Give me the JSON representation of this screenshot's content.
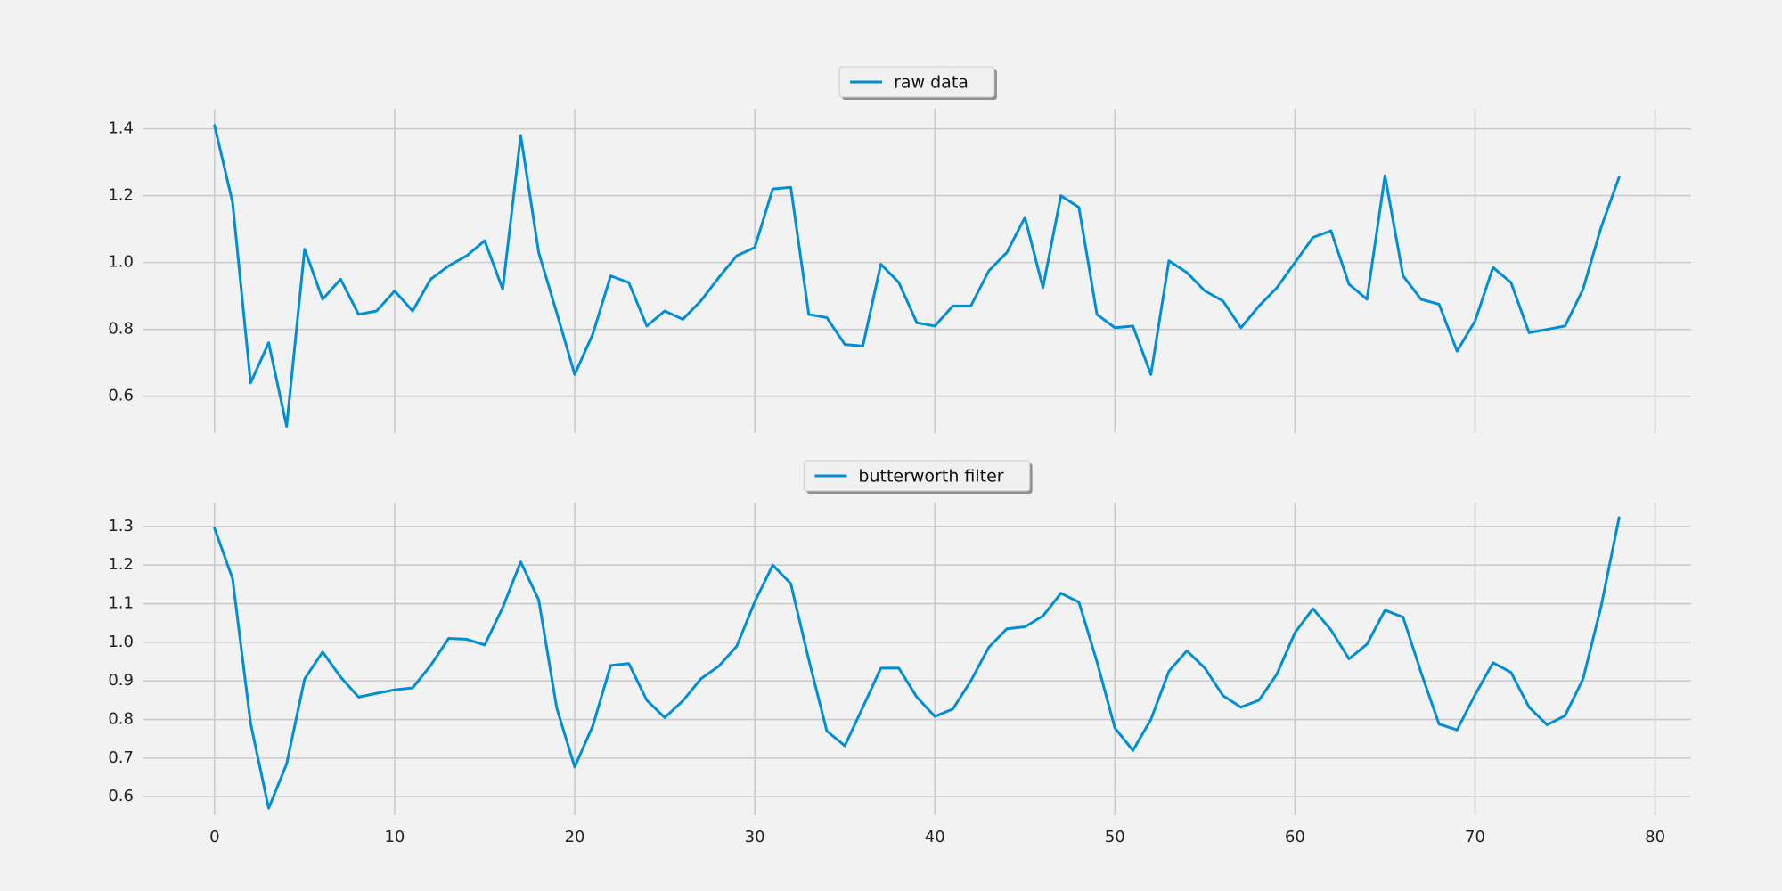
{
  "chart_data": [
    {
      "type": "line",
      "xlim": [
        -4,
        82
      ],
      "ylim": [
        0.49,
        1.46
      ],
      "yticks": [
        0.6,
        0.8,
        1.0,
        1.2,
        1.4
      ],
      "yticklabels": [
        "0.6",
        "0.8",
        "1.0",
        "1.2",
        "1.4"
      ],
      "xticks": [
        0,
        10,
        20,
        30,
        40,
        50,
        60,
        70,
        80
      ],
      "xticklabels": [],
      "grid": true,
      "legend": "top-center",
      "series": [
        {
          "name": "raw data",
          "color": "#008fd5",
          "x": [
            0,
            1,
            2,
            3,
            4,
            5,
            6,
            7,
            8,
            9,
            10,
            11,
            12,
            13,
            14,
            15,
            16,
            17,
            18,
            19,
            20,
            21,
            22,
            23,
            24,
            25,
            26,
            27,
            28,
            29,
            30,
            31,
            32,
            33,
            34,
            35,
            36,
            37,
            38,
            39,
            40,
            41,
            42,
            43,
            44,
            45,
            46,
            47,
            48,
            49,
            50,
            51,
            52,
            53,
            54,
            55,
            56,
            57,
            58,
            59,
            60,
            61,
            62,
            63,
            64,
            65,
            66,
            67,
            68,
            69,
            70,
            71,
            72,
            73,
            74,
            75,
            76,
            77,
            78
          ],
          "values": [
            1.41,
            1.18,
            0.64,
            0.76,
            0.51,
            1.04,
            0.89,
            0.95,
            0.845,
            0.855,
            0.915,
            0.855,
            0.95,
            0.99,
            1.02,
            1.065,
            0.92,
            1.38,
            1.03,
            0.85,
            0.665,
            0.785,
            0.96,
            0.94,
            0.81,
            0.855,
            0.83,
            0.885,
            0.955,
            1.02,
            1.045,
            1.22,
            1.225,
            0.845,
            0.835,
            0.755,
            0.75,
            0.995,
            0.94,
            0.82,
            0.81,
            0.87,
            0.87,
            0.975,
            1.03,
            1.135,
            0.925,
            1.2,
            1.165,
            0.845,
            0.805,
            0.81,
            0.665,
            1.005,
            0.97,
            0.915,
            0.885,
            0.805,
            0.87,
            0.925,
            1.0,
            1.075,
            1.095,
            0.935,
            0.89,
            1.26,
            0.96,
            0.89,
            0.875,
            0.735,
            0.825,
            0.985,
            0.94,
            0.79,
            0.8,
            0.81,
            0.92,
            1.105,
            1.255
          ]
        }
      ]
    },
    {
      "type": "line",
      "xlim": [
        -4,
        82
      ],
      "ylim": [
        0.552,
        1.362
      ],
      "yticks": [
        0.6,
        0.7,
        0.8,
        0.9,
        1.0,
        1.1,
        1.2,
        1.3
      ],
      "yticklabels": [
        "0.6",
        "0.7",
        "0.8",
        "0.9",
        "1.0",
        "1.1",
        "1.2",
        "1.3"
      ],
      "xticks": [
        0,
        10,
        20,
        30,
        40,
        50,
        60,
        70,
        80
      ],
      "xticklabels": [
        "0",
        "10",
        "20",
        "30",
        "40",
        "50",
        "60",
        "70",
        "80"
      ],
      "grid": true,
      "legend": "top-center",
      "series": [
        {
          "name": "butterworth filter",
          "color": "#008fd5",
          "x": [
            0,
            1,
            2,
            3,
            4,
            5,
            6,
            7,
            8,
            9,
            10,
            11,
            12,
            13,
            14,
            15,
            16,
            17,
            18,
            19,
            20,
            21,
            22,
            23,
            24,
            25,
            26,
            27,
            28,
            29,
            30,
            31,
            32,
            33,
            34,
            35,
            36,
            37,
            38,
            39,
            40,
            41,
            42,
            43,
            44,
            45,
            46,
            47,
            48,
            49,
            50,
            51,
            52,
            53,
            54,
            55,
            56,
            57,
            58,
            59,
            60,
            61,
            62,
            63,
            64,
            65,
            66,
            67,
            68,
            69,
            70,
            71,
            72,
            73,
            74,
            75,
            76,
            77,
            78
          ],
          "values": [
            1.295,
            1.165,
            0.79,
            0.57,
            0.685,
            0.905,
            0.975,
            0.91,
            0.858,
            0.868,
            0.877,
            0.882,
            0.94,
            1.01,
            1.008,
            0.993,
            1.09,
            1.208,
            1.11,
            0.83,
            0.677,
            0.783,
            0.94,
            0.945,
            0.85,
            0.805,
            0.848,
            0.905,
            0.938,
            0.99,
            1.105,
            1.2,
            1.152,
            0.955,
            0.77,
            0.732,
            0.832,
            0.933,
            0.933,
            0.858,
            0.808,
            0.827,
            0.9,
            0.987,
            1.035,
            1.04,
            1.068,
            1.127,
            1.104,
            0.95,
            0.778,
            0.72,
            0.8,
            0.925,
            0.978,
            0.933,
            0.862,
            0.832,
            0.85,
            0.918,
            1.025,
            1.087,
            1.032,
            0.957,
            0.995,
            1.083,
            1.065,
            0.922,
            0.788,
            0.773,
            0.864,
            0.947,
            0.922,
            0.832,
            0.786,
            0.81,
            0.905,
            1.093,
            1.323
          ]
        }
      ]
    }
  ]
}
